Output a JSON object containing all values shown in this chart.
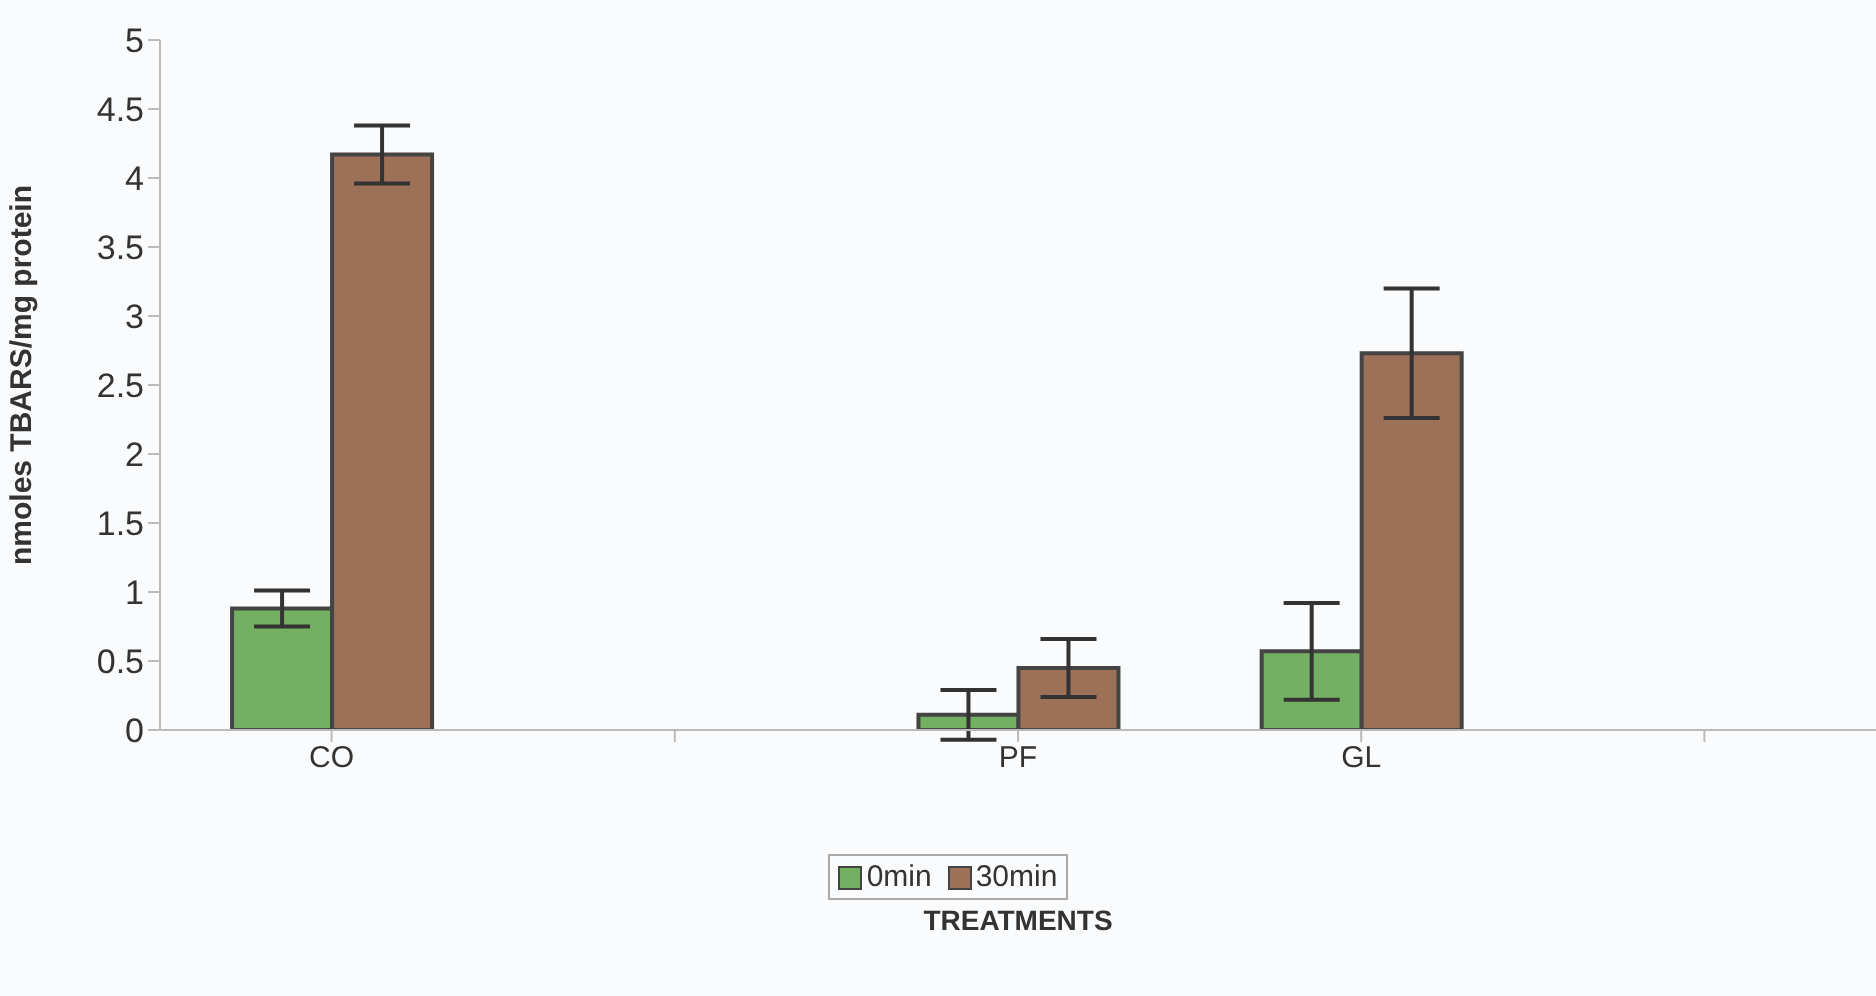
{
  "chart_data": {
    "type": "bar",
    "xlabel": "TREATMENTS",
    "ylabel": "nmoles TBARS/mg protein",
    "categories": [
      "CO",
      null,
      "PF",
      "GL",
      null
    ],
    "series": [
      {
        "name": "0min",
        "color": "#74b061",
        "values": [
          0.88,
          null,
          0.11,
          0.57,
          null
        ],
        "errors": [
          0.13,
          null,
          0.18,
          0.35,
          null
        ]
      },
      {
        "name": "30min",
        "color": "#9c7158",
        "values": [
          4.17,
          null,
          0.45,
          2.73,
          null
        ],
        "errors": [
          0.21,
          null,
          0.21,
          0.47,
          null
        ]
      }
    ],
    "ylim": [
      0,
      5
    ],
    "yticks": [
      0,
      0.5,
      1,
      1.5,
      2,
      2.5,
      3,
      3.5,
      4,
      4.5,
      5
    ],
    "legend": "bottom",
    "grid": false
  }
}
